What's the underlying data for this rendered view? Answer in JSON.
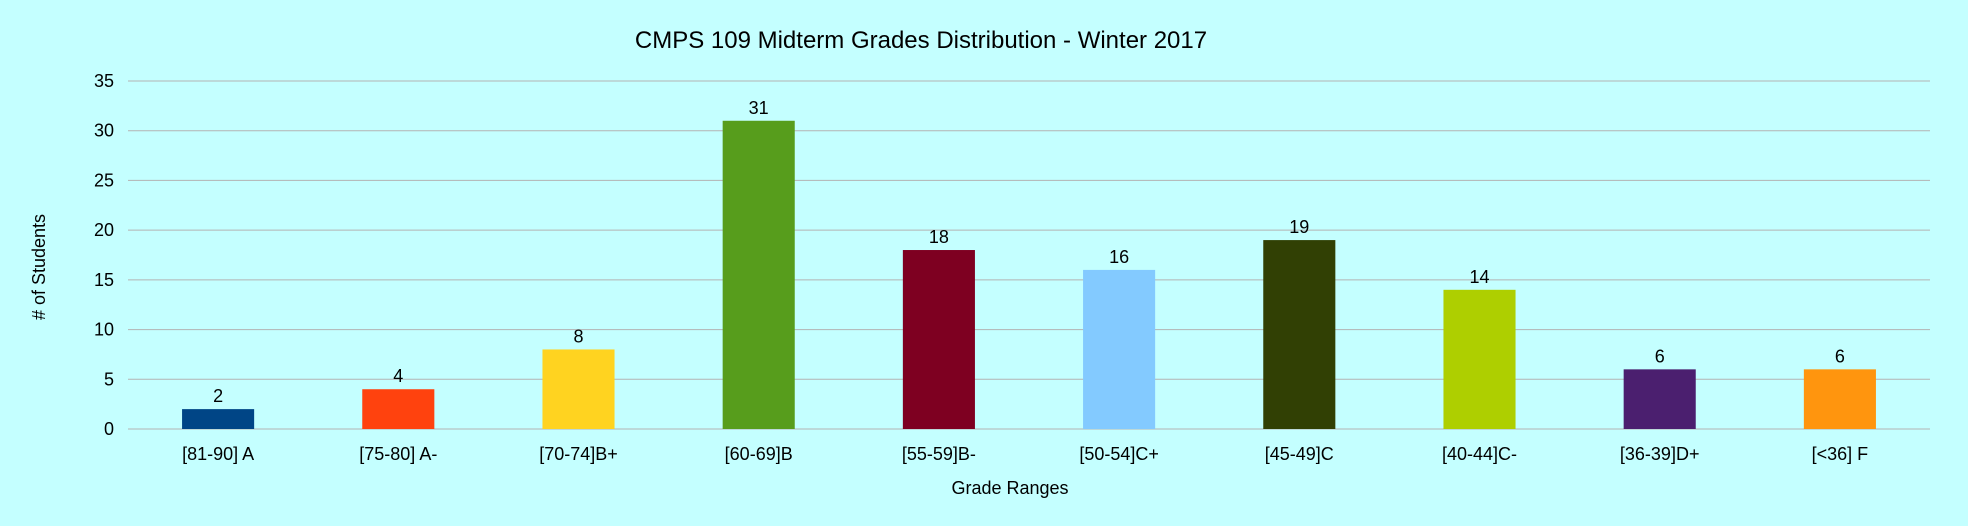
{
  "chart_data": {
    "type": "bar",
    "title": "CMPS 109 Midterm Grades Distribution - Winter 2017",
    "xlabel": "Grade Ranges",
    "ylabel": "# of Students",
    "ylim": [
      0,
      35
    ],
    "yticks": [
      0,
      5,
      10,
      15,
      20,
      25,
      30,
      35
    ],
    "grid": true,
    "legend": "none",
    "categories": [
      "[81-90] A",
      "[75-80] A-",
      "[70-74]B+",
      "[60-69]B",
      "[55-59]B-",
      "[50-54]C+",
      "[45-49]C",
      "[40-44]C-",
      "[36-39]D+",
      "[<36] F"
    ],
    "values": [
      2,
      4,
      8,
      31,
      18,
      16,
      19,
      14,
      6,
      6
    ],
    "colors": [
      "#004586",
      "#ff420e",
      "#ffd320",
      "#579d1c",
      "#7e0021",
      "#83caff",
      "#314004",
      "#aecf00",
      "#4b1f6f",
      "#ff950e"
    ],
    "data_labels": [
      "2",
      "4",
      "8",
      "31",
      "18",
      "16",
      "19",
      "14",
      "6",
      "6"
    ]
  }
}
